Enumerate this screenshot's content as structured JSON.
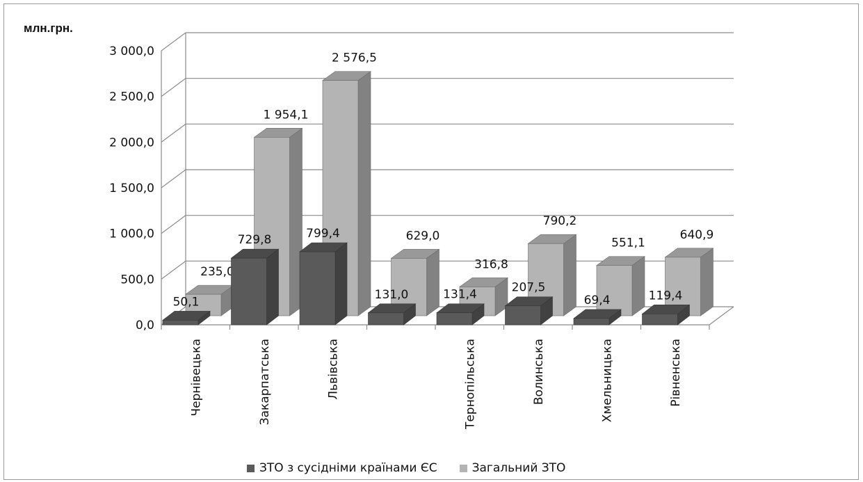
{
  "chart_data": {
    "type": "bar",
    "ylabel": "млн.грн.",
    "ylim": [
      0,
      3000
    ],
    "y_ticks": [
      "0,0",
      "500,0",
      "1 000,0",
      "1 500,0",
      "2 000,0",
      "2 500,0",
      "3 000,0"
    ],
    "categories": [
      "Чернівецька",
      "Закарпатська",
      "Львівська",
      "",
      "Тернопільська",
      "Волинська",
      "Хмельницька",
      "Рівненська"
    ],
    "series": [
      {
        "name": "ЗТО з сусідніми країнами ЄС",
        "color": "#5a5a5a",
        "values": [
          50.1,
          729.8,
          799.4,
          131.0,
          131.4,
          207.5,
          69.4,
          119.4
        ],
        "labels": [
          "50,1",
          "729,8",
          "799,4",
          "131,0",
          "131,4",
          "207,5",
          "69,4",
          "119,4"
        ]
      },
      {
        "name": "Загальний ЗТО",
        "color": "#b4b4b4",
        "values": [
          235.0,
          1954.1,
          2576.5,
          629.0,
          316.8,
          790.2,
          551.1,
          640.9
        ],
        "labels": [
          "235,0",
          "1 954,1",
          "2 576,5",
          "629,0",
          "316,8",
          "790,2",
          "551,1",
          "640,9"
        ]
      }
    ],
    "grid": true,
    "legend": "bottom"
  }
}
